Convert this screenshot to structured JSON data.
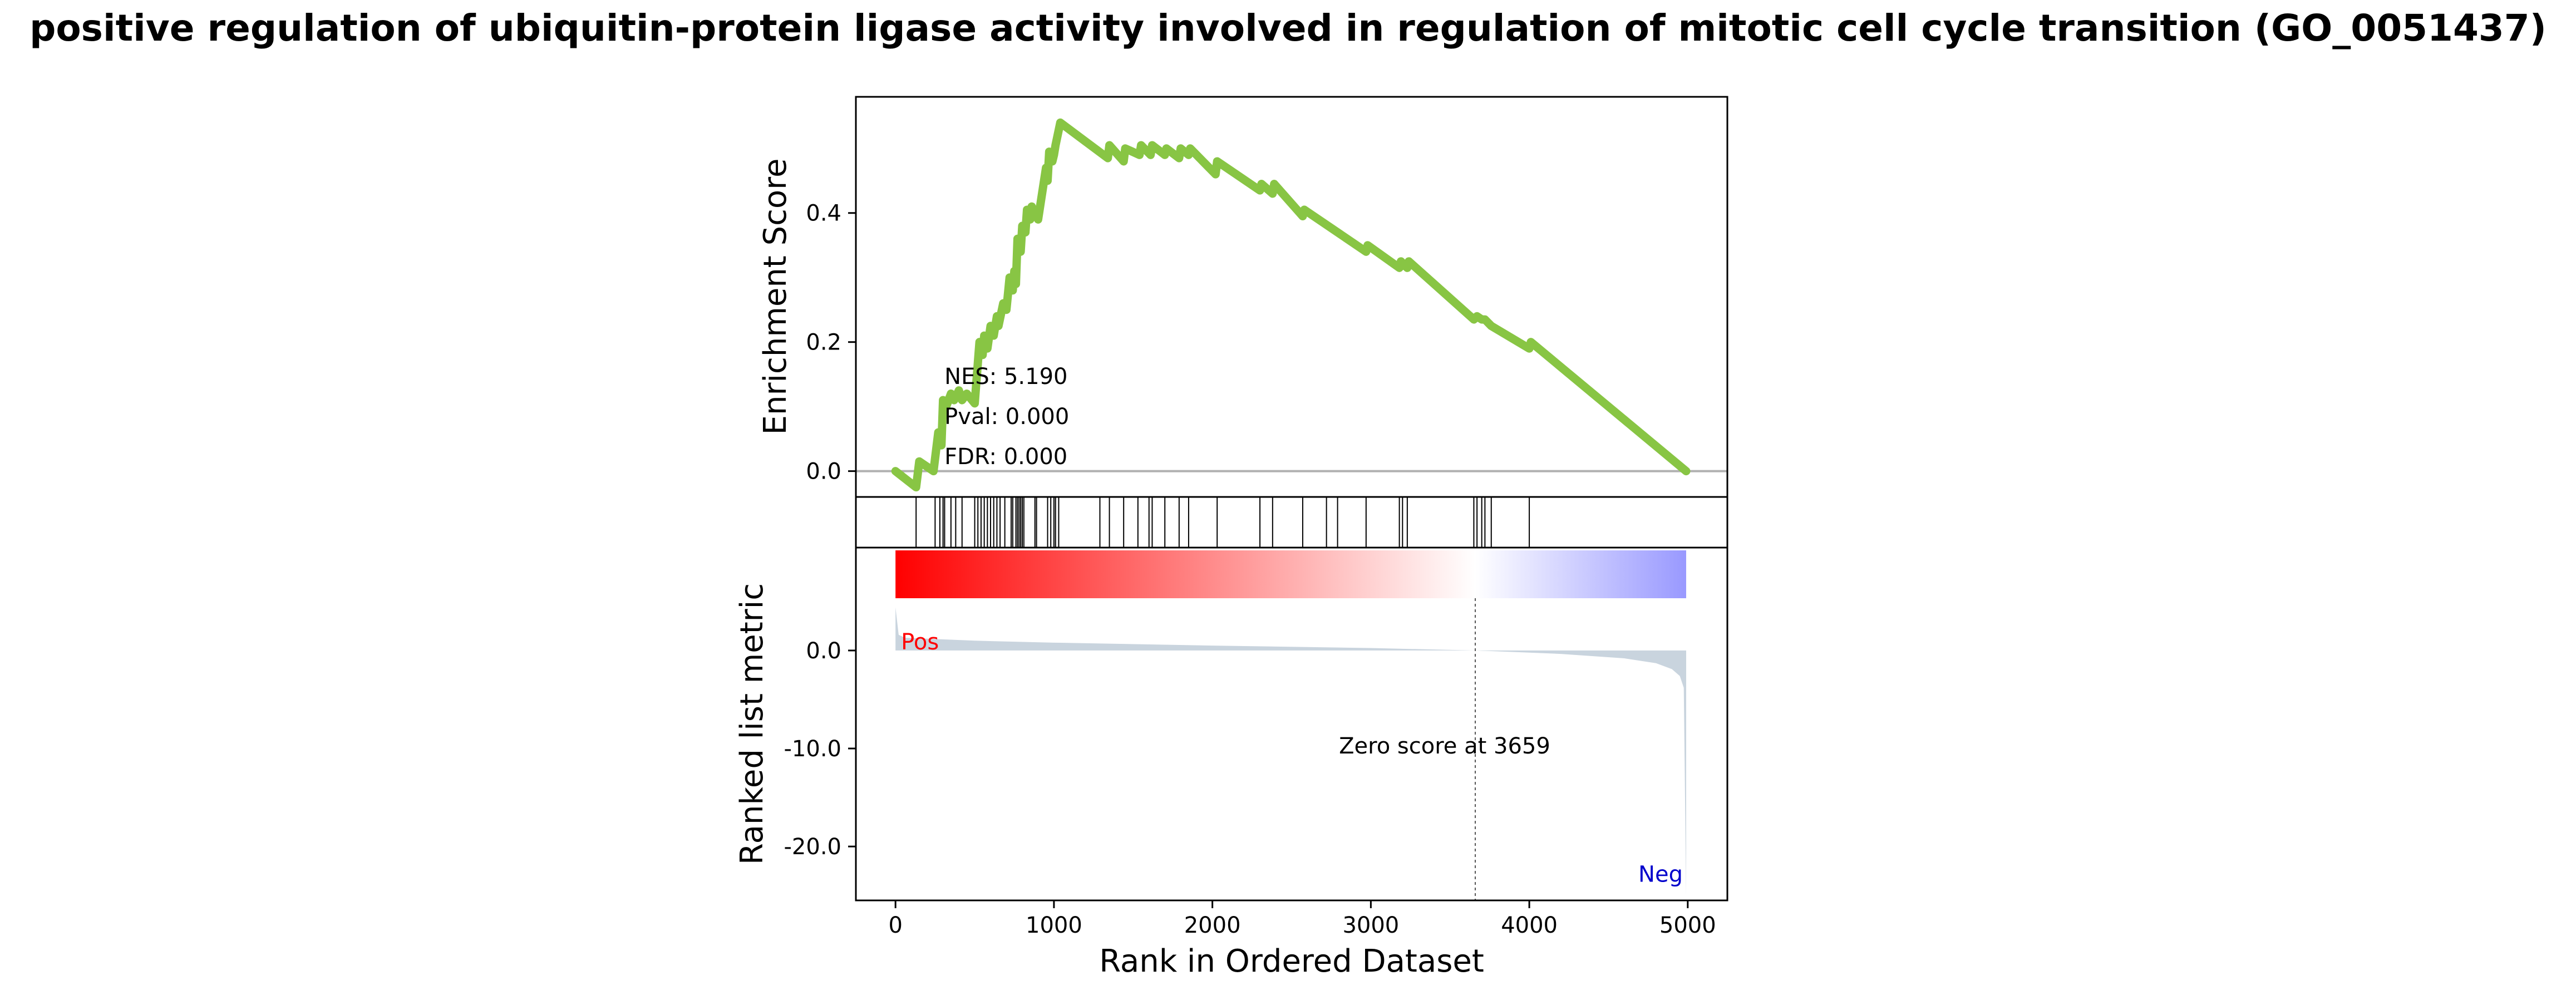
{
  "chart_data": {
    "type": "line",
    "title": "positive regulation of ubiquitin-protein ligase activity involved in regulation of mitotic cell cycle transition (GO_0051437)",
    "xlabel": "Rank in Ordered Dataset",
    "xlim": [
      -250,
      5250
    ],
    "x_ticks": [
      0,
      1000,
      2000,
      3000,
      4000,
      5000
    ],
    "x_tick_labels": [
      "0",
      "1000",
      "2000",
      "3000",
      "4000",
      "5000"
    ],
    "enrichment": {
      "ylabel": "Enrichment Score",
      "ylim": [
        -0.04,
        0.58
      ],
      "y_ticks": [
        0.0,
        0.2,
        0.4
      ],
      "y_tick_labels": [
        "0.0",
        "0.2",
        "0.4"
      ],
      "line_color": "#88c544",
      "zero_line_color": "#b0b0b0",
      "x": [
        0,
        130,
        150,
        240,
        270,
        290,
        300,
        320,
        350,
        370,
        400,
        420,
        450,
        500,
        530,
        550,
        560,
        580,
        600,
        620,
        640,
        650,
        680,
        700,
        720,
        740,
        750,
        760,
        770,
        790,
        800,
        820,
        830,
        850,
        860,
        880,
        900,
        950,
        960,
        970,
        990,
        1000,
        1010,
        1040,
        1340,
        1350,
        1440,
        1450,
        1540,
        1550,
        1610,
        1620,
        1700,
        1710,
        1790,
        1800,
        1850,
        1860,
        2020,
        2030,
        2300,
        2310,
        2380,
        2390,
        2570,
        2580,
        2970,
        2980,
        3180,
        3190,
        3230,
        3240,
        3650,
        3670,
        3700,
        3720,
        3760,
        4000,
        4010,
        4990
      ],
      "y": [
        0.0,
        -0.025,
        0.015,
        0.0,
        0.06,
        0.04,
        0.11,
        0.1,
        0.12,
        0.11,
        0.125,
        0.11,
        0.12,
        0.105,
        0.2,
        0.18,
        0.21,
        0.19,
        0.225,
        0.21,
        0.24,
        0.225,
        0.26,
        0.25,
        0.3,
        0.28,
        0.31,
        0.29,
        0.36,
        0.34,
        0.38,
        0.37,
        0.405,
        0.39,
        0.41,
        0.4,
        0.39,
        0.47,
        0.45,
        0.495,
        0.48,
        0.49,
        0.505,
        0.54,
        0.485,
        0.505,
        0.48,
        0.5,
        0.49,
        0.505,
        0.49,
        0.505,
        0.49,
        0.5,
        0.485,
        0.5,
        0.49,
        0.5,
        0.46,
        0.48,
        0.435,
        0.445,
        0.43,
        0.445,
        0.395,
        0.405,
        0.34,
        0.35,
        0.315,
        0.325,
        0.315,
        0.325,
        0.235,
        0.24,
        0.235,
        0.235,
        0.225,
        0.19,
        0.2,
        0.0
      ]
    },
    "stats_text": [
      "NES: 5.190",
      "Pval: 0.000",
      "FDR: 0.000"
    ],
    "hits": [
      130,
      250,
      280,
      300,
      310,
      350,
      380,
      420,
      500,
      520,
      540,
      560,
      580,
      600,
      620,
      640,
      660,
      690,
      730,
      740,
      760,
      770,
      780,
      790,
      800,
      810,
      880,
      890,
      960,
      980,
      1000,
      1010,
      1030,
      1290,
      1350,
      1440,
      1530,
      1600,
      1620,
      1700,
      1790,
      1850,
      2030,
      2300,
      2380,
      2570,
      2720,
      2790,
      2970,
      3180,
      3200,
      3230,
      3650,
      3670,
      3700,
      3720,
      3760,
      4000
    ],
    "gradient": {
      "start_color": "#ff0000",
      "mid_color": "#ffffff",
      "end_color": "#9999ff",
      "mid_rank": 3659
    },
    "ranked_metric": {
      "ylabel": "Ranked list metric",
      "ylim": [
        -25.5,
        10.5
      ],
      "y_ticks": [
        0.0,
        -10.0,
        -20.0
      ],
      "y_tick_labels": [
        "0.0",
        "-10.0",
        "-20.0"
      ],
      "fill_color": "#c9d4de",
      "x": [
        0,
        20,
        60,
        200,
        500,
        1000,
        2000,
        3000,
        3659,
        4200,
        4600,
        4800,
        4900,
        4950,
        4975,
        4990
      ],
      "y": [
        4.4,
        1.6,
        1.3,
        1.2,
        1.0,
        0.8,
        0.5,
        0.25,
        0.0,
        -0.35,
        -0.8,
        -1.3,
        -1.9,
        -2.6,
        -3.8,
        -25.0
      ]
    },
    "zero_score_label": "Zero score at 3659",
    "zero_score_rank": 3659,
    "pos_label": "Pos",
    "neg_label": "Neg",
    "pos_color": "#ff0000",
    "neg_color": "#0000cc"
  }
}
